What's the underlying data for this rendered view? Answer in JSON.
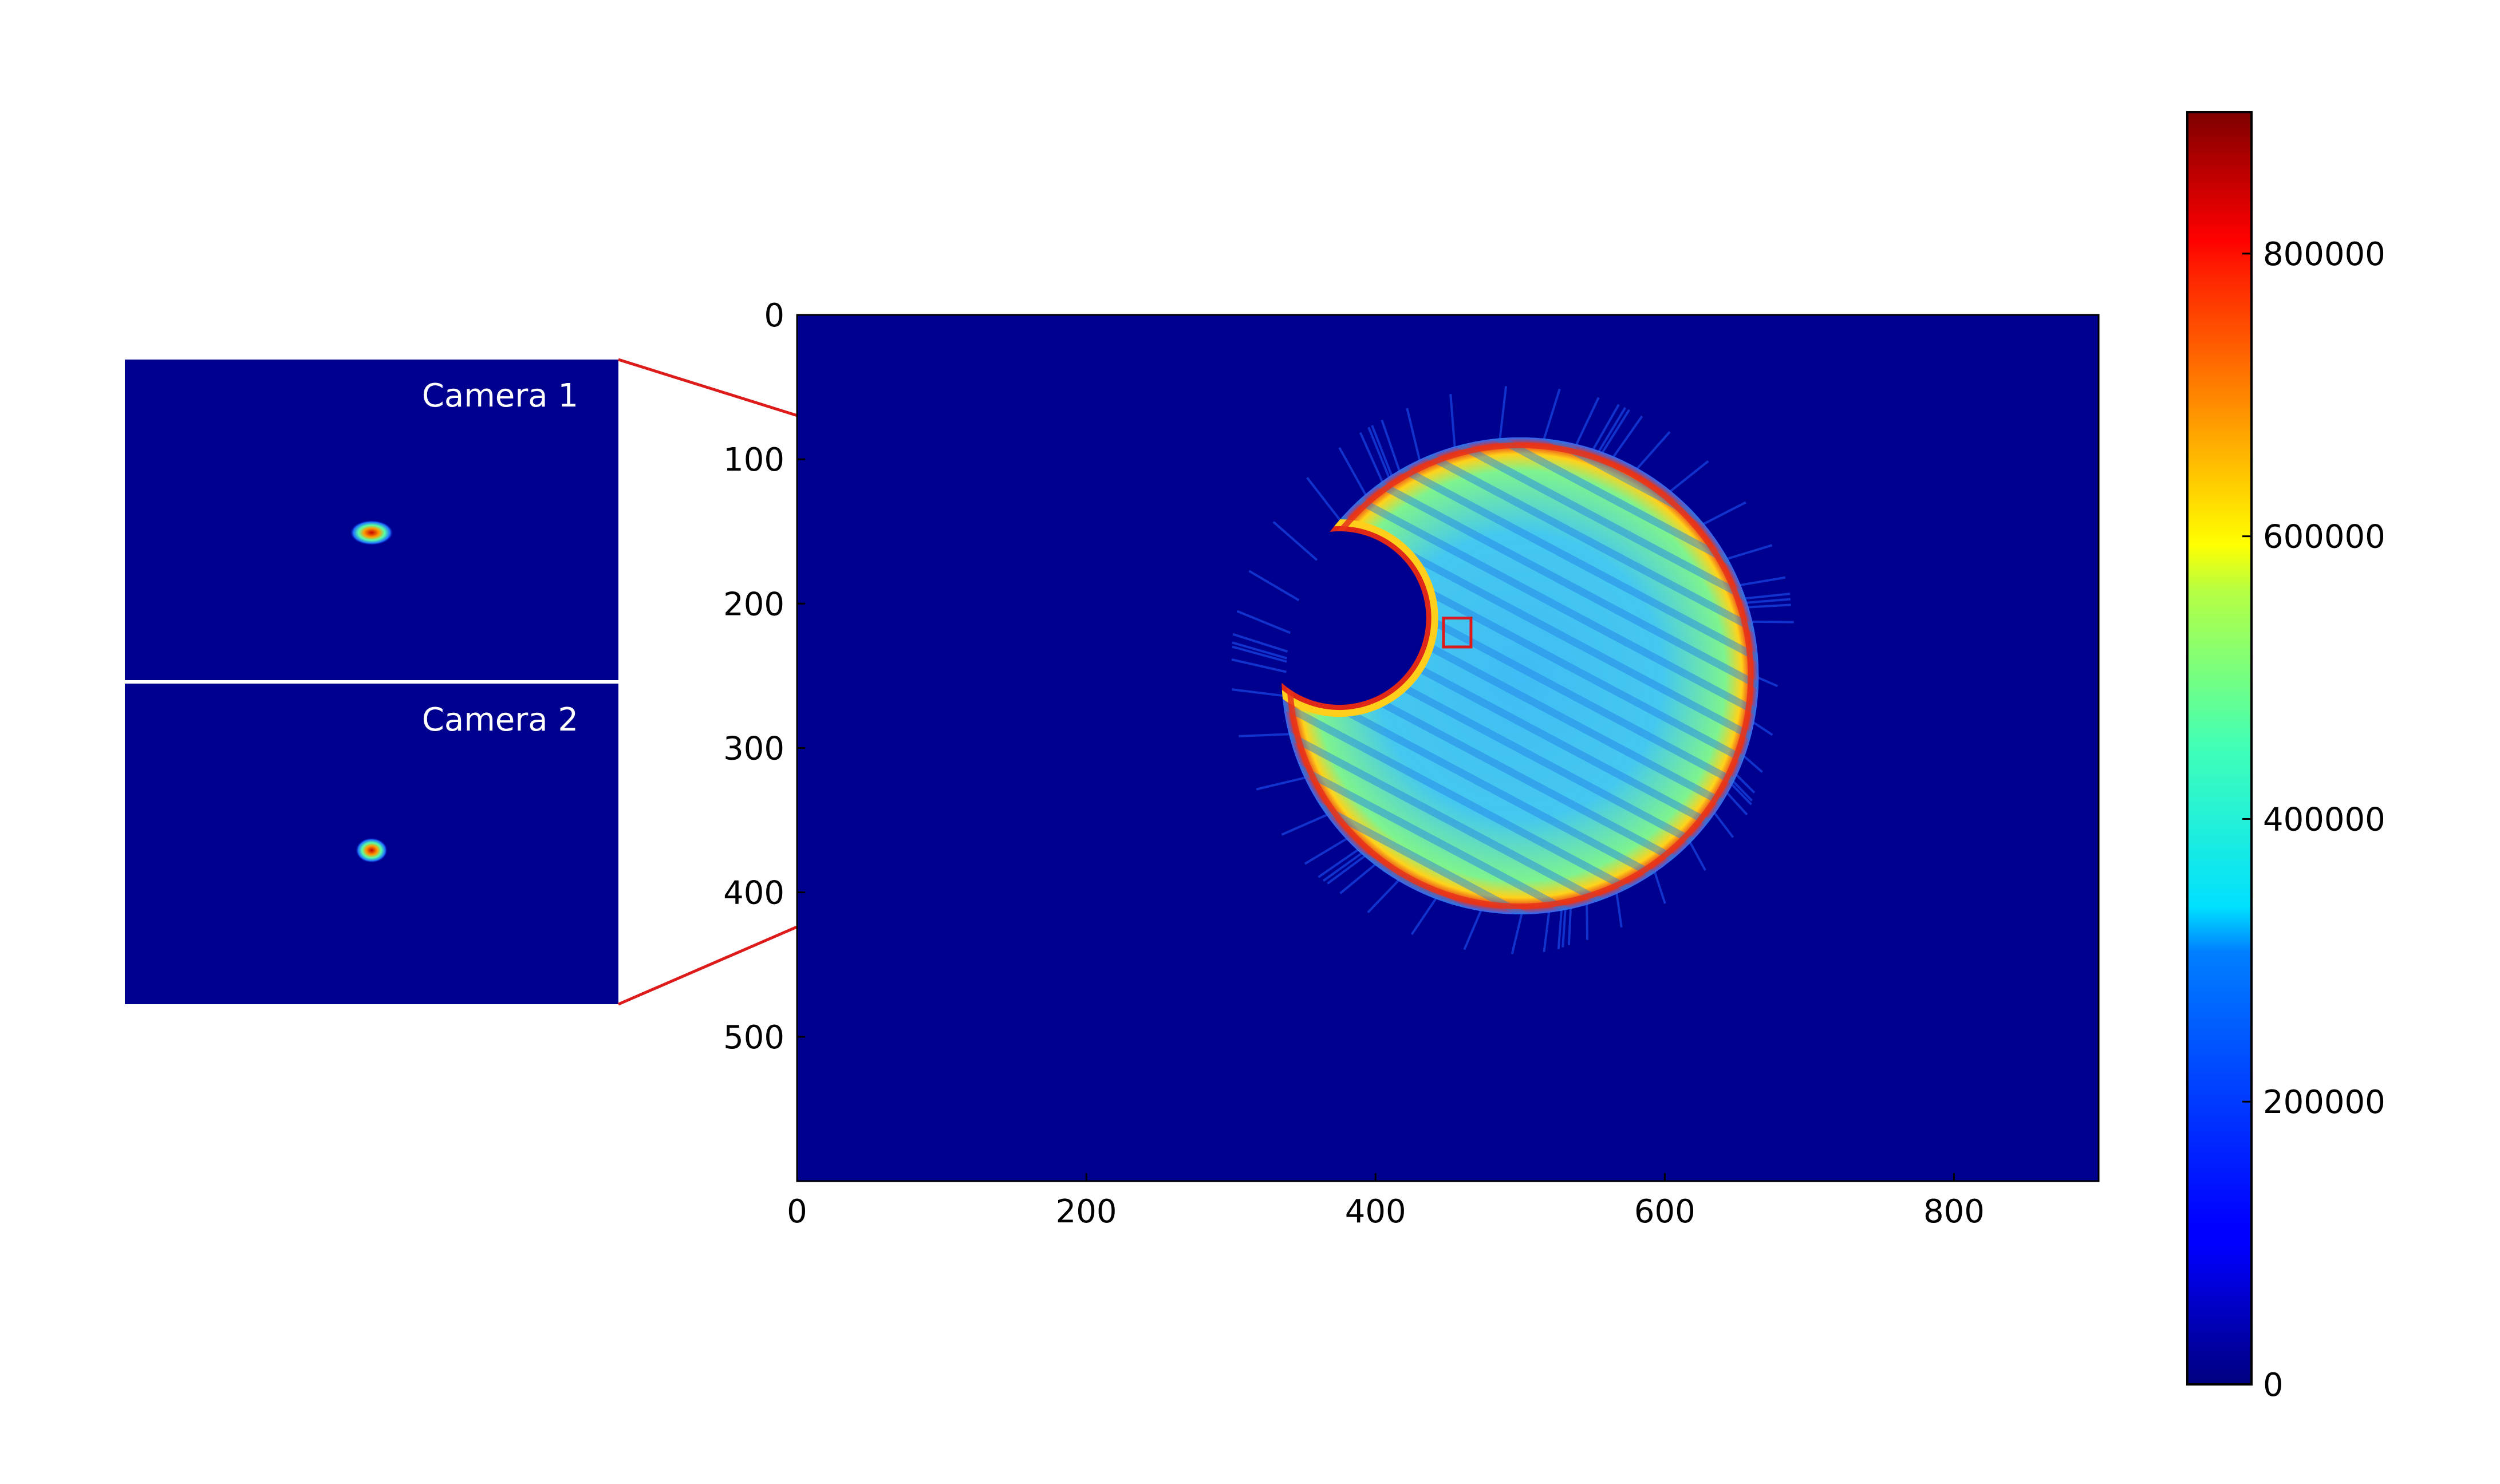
{
  "chart_data": {
    "type": "heatmap",
    "title": "",
    "xlabel": "",
    "ylabel": "",
    "x_ticks": [
      0,
      200,
      400,
      600,
      800
    ],
    "y_ticks": [
      0,
      100,
      200,
      300,
      400,
      500
    ],
    "xlim": [
      0,
      900
    ],
    "ylim": [
      600,
      0
    ],
    "grid": false,
    "colormap": "jet",
    "colorbar": {
      "range": [
        0,
        900000
      ],
      "ticks": [
        0,
        200000,
        400000,
        600000,
        800000
      ]
    },
    "background_value": 0,
    "features": {
      "disk_center": [
        500,
        250
      ],
      "disk_radius": 165,
      "rim_value": 780000,
      "interior_value": 430000,
      "notch_center": [
        375,
        210
      ],
      "notch_radius": 60
    },
    "zoom_region": {
      "x": [
        447,
        466
      ],
      "y": [
        210,
        230
      ]
    },
    "insets": [
      {
        "label": "Camera 1",
        "spot_center": [
          0.5,
          0.54
        ],
        "spot_value": 800000
      },
      {
        "label": "Camera 2",
        "spot_center": [
          0.5,
          0.52
        ],
        "spot_value": 800000
      }
    ]
  },
  "colors": {
    "background_dark_blue": "#00008f",
    "zoom_line": "#dd1b1b",
    "inset_divider": "#ffffff"
  }
}
